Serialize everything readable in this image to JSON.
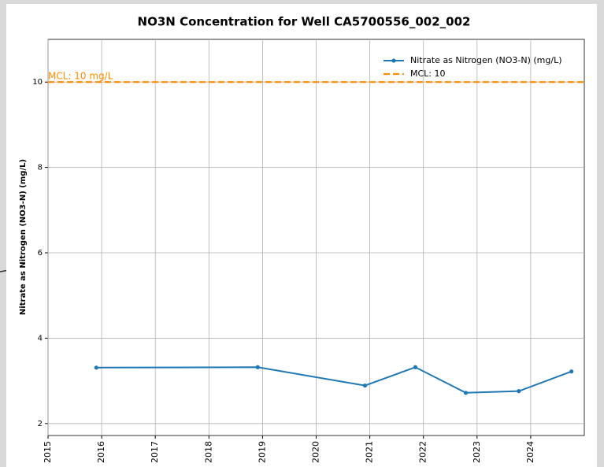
{
  "chart_data": {
    "type": "line",
    "title": "NO3N Concentration for Well CA5700556_002_002",
    "y_label": "Nitrate as Nitrogen (NO3-N) (mg/L)",
    "series": [
      {
        "name": "Nitrate as Nitrogen (NO3-N) (mg/L)",
        "color": "#1f77b4",
        "x": [
          2015.9,
          2018.91,
          2020.91,
          2021.85,
          2022.79,
          2023.78,
          2024.76
        ],
        "values": [
          3.31,
          3.32,
          2.89,
          3.32,
          2.72,
          2.76,
          3.22
        ]
      }
    ],
    "reference_lines": [
      {
        "name": "MCL: 10",
        "value": 10,
        "label": "MCL: 10 mg/L",
        "color": "#ff8c00"
      }
    ],
    "xlim": [
      2015,
      2025
    ],
    "xticks": [
      2015,
      2016,
      2017,
      2018,
      2019,
      2020,
      2021,
      2022,
      2023,
      2024
    ],
    "ylim": [
      1.72,
      11
    ],
    "yticks": [
      2,
      4,
      6,
      8,
      10
    ],
    "grid": true,
    "legend": "upper right"
  }
}
